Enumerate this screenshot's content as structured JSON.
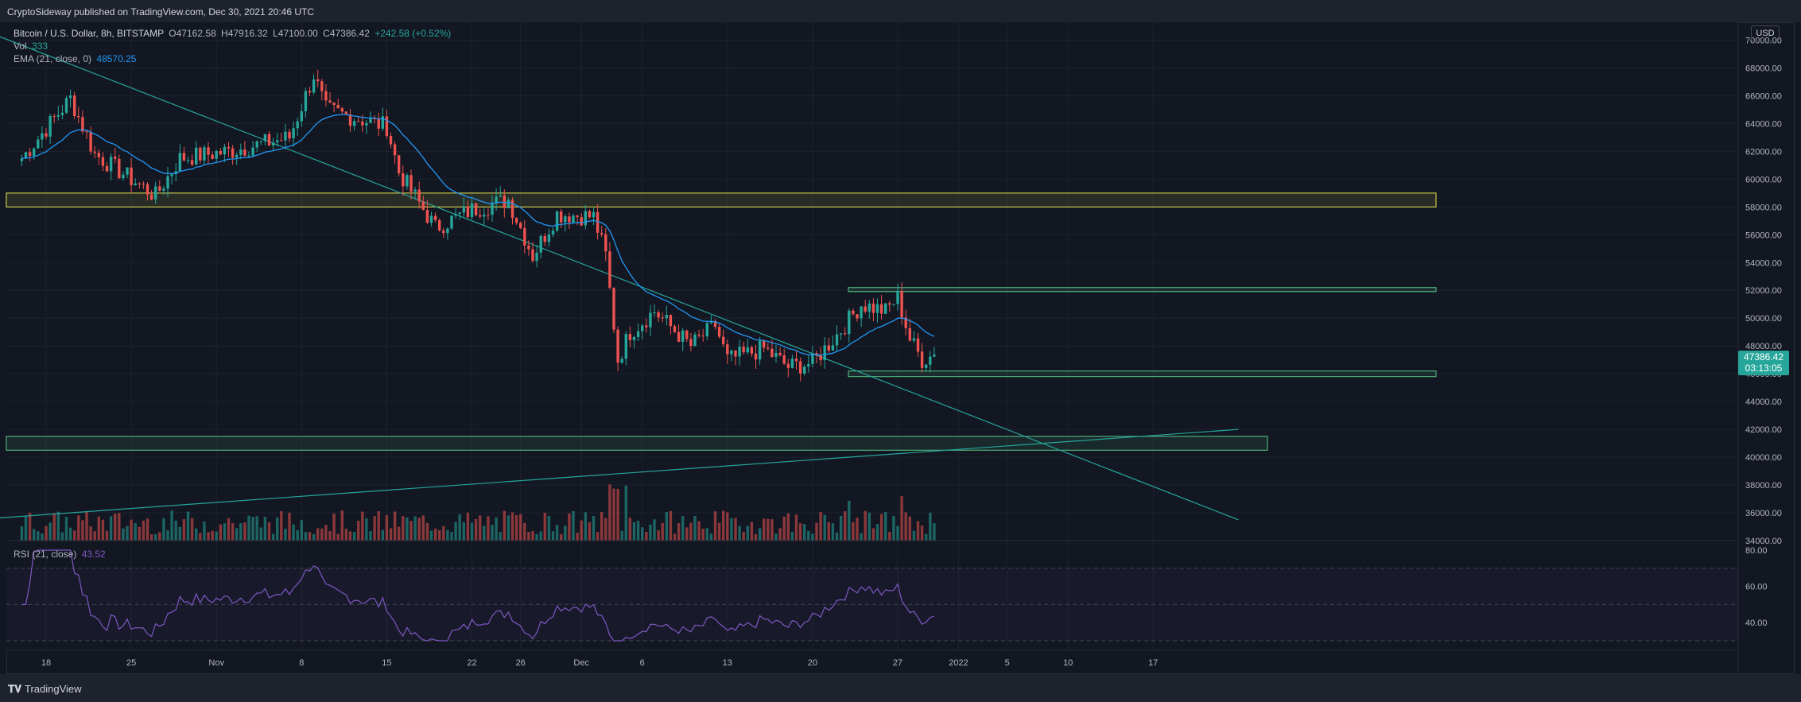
{
  "header": {
    "text": "CryptoSideway published on TradingView.com, Dec 30, 2021 20:46 UTC"
  },
  "legend": {
    "title": "Bitcoin / U.S. Dollar, 8h, BITSTAMP",
    "o": "O47162.58",
    "h": "H47916.32",
    "l": "L47100.00",
    "c": "C47386.42",
    "chg": "+242.58 (+0.52%)",
    "vol_label": "Vol",
    "vol_value": "333",
    "ema_label": "EMA (21, close, 0)",
    "ema_value": "48570.25",
    "rsi_label": "RSI (21, close)",
    "rsi_value": "43.52"
  },
  "currency": "USD",
  "last_price": {
    "value": "47386.42",
    "countdown": "03:13:05"
  },
  "footer": {
    "brand": "TradingView"
  },
  "colors": {
    "up": "#26a69a",
    "down": "#ef5350",
    "ema": "#2196f3",
    "rsi": "#7e57c2",
    "zone_yellow": "#c8c849",
    "zone_green": "#4caf7a",
    "trendline": "#26a69a"
  },
  "chart_data": {
    "type": "candlestick",
    "price_axis_ticks": [
      "70000.00",
      "68000.00",
      "66000.00",
      "64000.00",
      "62000.00",
      "60000.00",
      "58000.00",
      "56000.00",
      "54000.00",
      "52000.00",
      "50000.00",
      "48000.00",
      "46000.00",
      "44000.00",
      "42000.00",
      "40000.00",
      "38000.00",
      "36000.00",
      "34000.00"
    ],
    "rsi_axis_ticks": [
      "80.00",
      "60.00",
      "40.00"
    ],
    "time_axis_ticks": [
      "18",
      "25",
      "Nov",
      "8",
      "15",
      "22",
      "26",
      "Dec",
      "6",
      "13",
      "20",
      "27",
      "2022",
      "5",
      "10",
      "17"
    ],
    "ylim": [
      34000,
      71000
    ],
    "key_closes": [
      [
        "Oct 16",
        61500
      ],
      [
        "Oct 20",
        65800
      ],
      [
        "Oct 22",
        61800
      ],
      [
        "Oct 27",
        58800
      ],
      [
        "Oct 29",
        61500
      ],
      [
        "Nov 2",
        62000
      ],
      [
        "Nov 7",
        63000
      ],
      [
        "Nov 9",
        67500
      ],
      [
        "Nov 10",
        65000
      ],
      [
        "Nov 12",
        64500
      ],
      [
        "Nov 15",
        63800
      ],
      [
        "Nov 16",
        60500
      ],
      [
        "Nov 19",
        56500
      ],
      [
        "Nov 22",
        57800
      ],
      [
        "Nov 25",
        58500
      ],
      [
        "Nov 27",
        54500
      ],
      [
        "Nov 29",
        57500
      ],
      [
        "Dec 2",
        57300
      ],
      [
        "Dec 3",
        54500
      ],
      [
        "Dec 4",
        47000
      ],
      [
        "Dec 5",
        49000
      ],
      [
        "Dec 7",
        50500
      ],
      [
        "Dec 10",
        48000
      ],
      [
        "Dec 12",
        49500
      ],
      [
        "Dec 13",
        47000
      ],
      [
        "Dec 16",
        47800
      ],
      [
        "Dec 18",
        46500
      ],
      [
        "Dec 20",
        46800
      ],
      [
        "Dec 22",
        48800
      ],
      [
        "Dec 24",
        51000
      ],
      [
        "Dec 26",
        50500
      ],
      [
        "Dec 27",
        51500
      ],
      [
        "Dec 28",
        48500
      ],
      [
        "Dec 29",
        47000
      ],
      [
        "Dec 30",
        47386
      ]
    ],
    "zones": [
      {
        "color": "yellow",
        "from": 58000,
        "to": 59000
      },
      {
        "color": "green",
        "from": 52000,
        "to": 52200
      },
      {
        "color": "green",
        "from": 45800,
        "to": 46200
      },
      {
        "color": "green",
        "from": 40500,
        "to": 41500
      }
    ],
    "trendlines": [
      {
        "from": [
          "Oct 12",
          71000
        ],
        "to": [
          "Jan 24",
          35500
        ]
      },
      {
        "from": [
          "Oct 12",
          35500
        ],
        "to": [
          "Jan 24",
          42000
        ]
      }
    ]
  }
}
